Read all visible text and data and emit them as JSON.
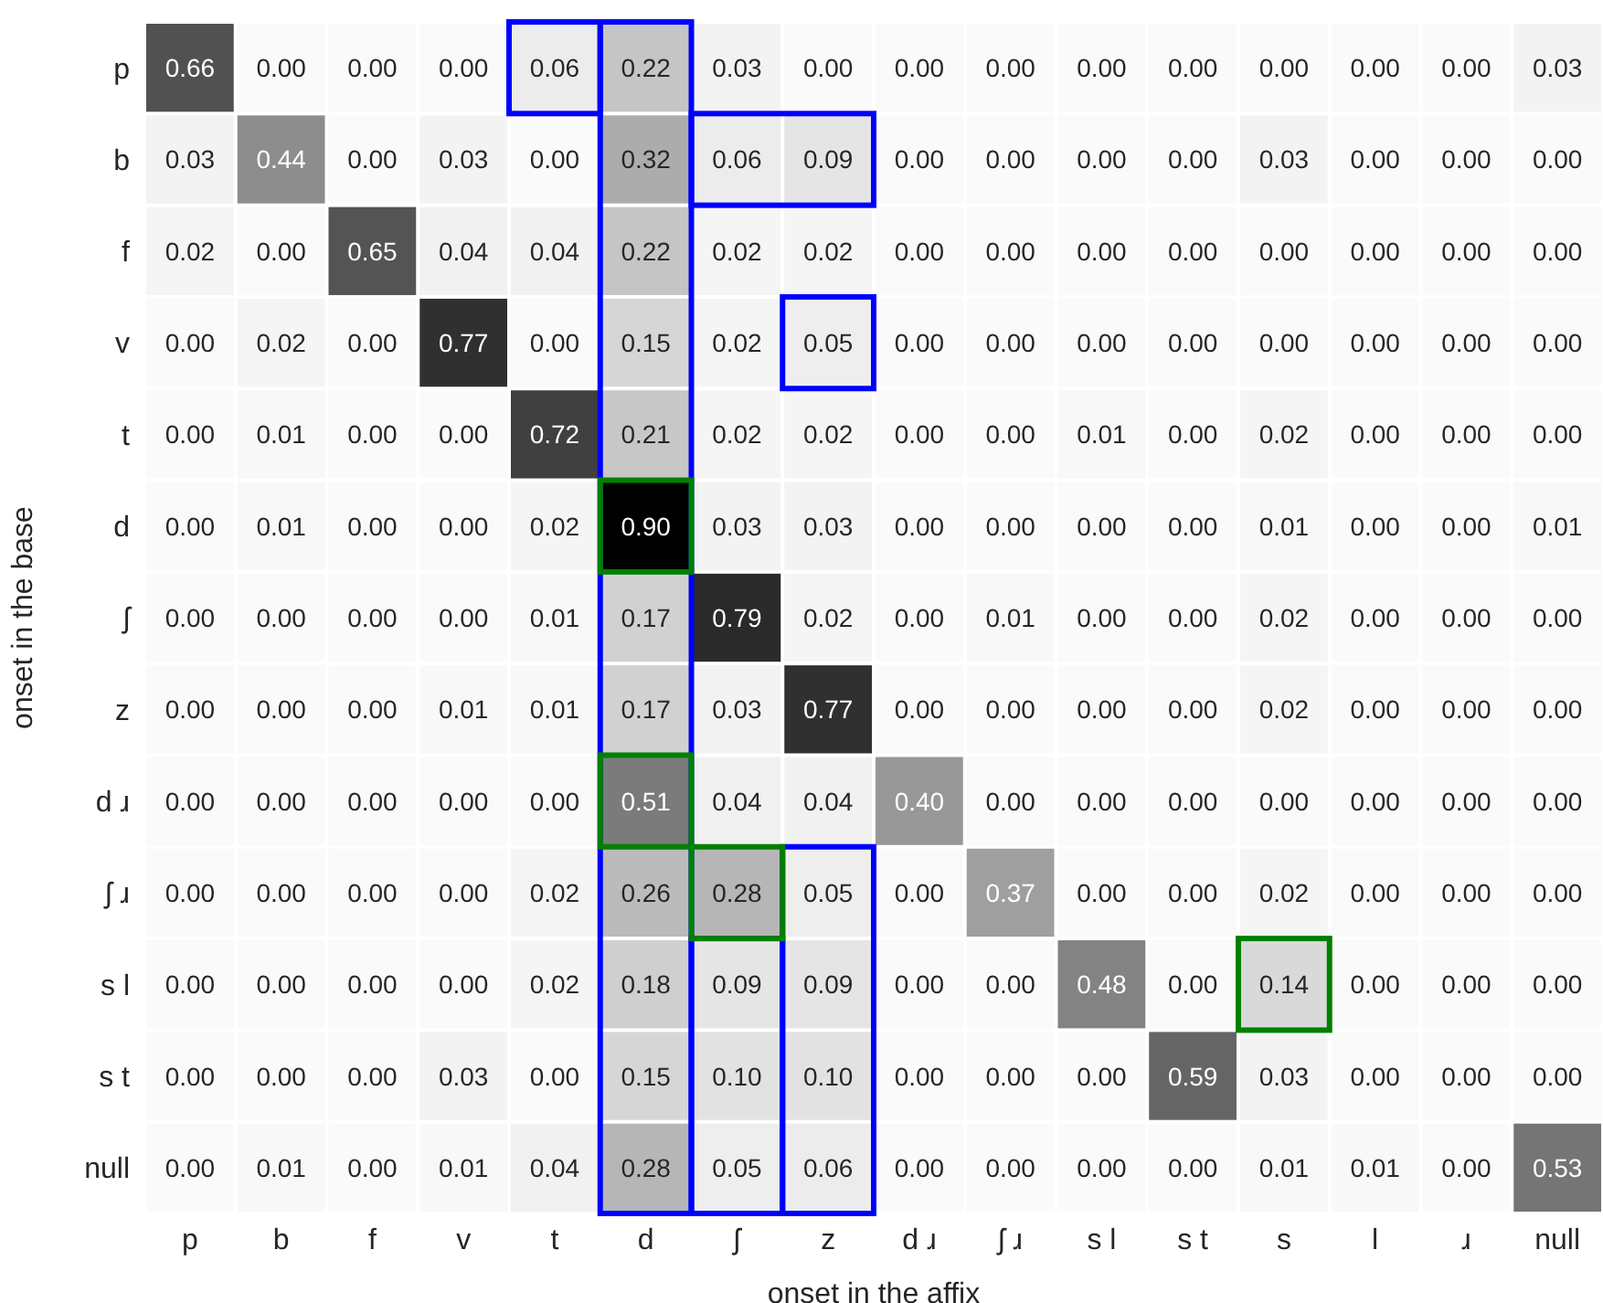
{
  "chart_data": {
    "type": "heatmap",
    "xlabel": "onset in the affix",
    "ylabel": "onset in the base",
    "grid": false,
    "legend": false,
    "cell_labels": [
      [
        "0.66",
        "0.00",
        "0.00",
        "0.00",
        "0.06",
        "0.22",
        "0.03",
        "0.00",
        "0.00",
        "0.00",
        "0.00",
        "0.00",
        "0.00",
        "0.00",
        "0.00",
        "0.03"
      ],
      [
        "0.03",
        "0.44",
        "0.00",
        "0.03",
        "0.00",
        "0.32",
        "0.06",
        "0.09",
        "0.00",
        "0.00",
        "0.00",
        "0.00",
        "0.03",
        "0.00",
        "0.00",
        "0.00"
      ],
      [
        "0.02",
        "0.00",
        "0.65",
        "0.04",
        "0.04",
        "0.22",
        "0.02",
        "0.02",
        "0.00",
        "0.00",
        "0.00",
        "0.00",
        "0.00",
        "0.00",
        "0.00",
        "0.00"
      ],
      [
        "0.00",
        "0.02",
        "0.00",
        "0.77",
        "0.00",
        "0.15",
        "0.02",
        "0.05",
        "0.00",
        "0.00",
        "0.00",
        "0.00",
        "0.00",
        "0.00",
        "0.00",
        "0.00"
      ],
      [
        "0.00",
        "0.01",
        "0.00",
        "0.00",
        "0.72",
        "0.21",
        "0.02",
        "0.02",
        "0.00",
        "0.00",
        "0.01",
        "0.00",
        "0.02",
        "0.00",
        "0.00",
        "0.00"
      ],
      [
        "0.00",
        "0.01",
        "0.00",
        "0.00",
        "0.02",
        "0.90",
        "0.03",
        "0.03",
        "0.00",
        "0.00",
        "0.00",
        "0.00",
        "0.01",
        "0.00",
        "0.00",
        "0.01"
      ],
      [
        "0.00",
        "0.00",
        "0.00",
        "0.00",
        "0.01",
        "0.17",
        "0.79",
        "0.02",
        "0.00",
        "0.01",
        "0.00",
        "0.00",
        "0.02",
        "0.00",
        "0.00",
        "0.00"
      ],
      [
        "0.00",
        "0.00",
        "0.00",
        "0.01",
        "0.01",
        "0.17",
        "0.03",
        "0.77",
        "0.00",
        "0.00",
        "0.00",
        "0.00",
        "0.02",
        "0.00",
        "0.00",
        "0.00"
      ],
      [
        "0.00",
        "0.00",
        "0.00",
        "0.00",
        "0.00",
        "0.51",
        "0.04",
        "0.04",
        "0.40",
        "0.00",
        "0.00",
        "0.00",
        "0.00",
        "0.00",
        "0.00",
        "0.00"
      ],
      [
        "0.00",
        "0.00",
        "0.00",
        "0.00",
        "0.02",
        "0.26",
        "0.28",
        "0.05",
        "0.00",
        "0.37",
        "0.00",
        "0.00",
        "0.02",
        "0.00",
        "0.00",
        "0.00"
      ],
      [
        "0.00",
        "0.00",
        "0.00",
        "0.00",
        "0.02",
        "0.18",
        "0.09",
        "0.09",
        "0.00",
        "0.00",
        "0.48",
        "0.00",
        "0.14",
        "0.00",
        "0.00",
        "0.00"
      ],
      [
        "0.00",
        "0.00",
        "0.00",
        "0.03",
        "0.00",
        "0.15",
        "0.10",
        "0.10",
        "0.00",
        "0.00",
        "0.00",
        "0.59",
        "0.03",
        "0.00",
        "0.00",
        "0.00"
      ],
      [
        "0.00",
        "0.01",
        "0.00",
        "0.01",
        "0.04",
        "0.28",
        "0.05",
        "0.06",
        "0.00",
        "0.00",
        "0.00",
        "0.00",
        "0.01",
        "0.01",
        "0.00",
        "0.53"
      ]
    ],
    "categories": [
      "p",
      "b",
      "f",
      "v",
      "t",
      "d",
      "ʃ",
      "z",
      "d ɹ",
      "ʃ ɹ",
      "s l",
      "s t",
      "s",
      "l",
      "ɹ",
      "null"
    ],
    "y_categories": [
      "p",
      "b",
      "f",
      "v",
      "t",
      "d",
      "ʃ",
      "z",
      "d ɹ",
      "ʃ ɹ",
      "s l",
      "s t",
      "null"
    ],
    "cells": [
      [
        0.66,
        0.0,
        0.0,
        0.0,
        0.06,
        0.22,
        0.03,
        0.0,
        0.0,
        0.0,
        0.0,
        0.0,
        0.0,
        0.0,
        0.0,
        0.03
      ],
      [
        0.03,
        0.44,
        0.0,
        0.03,
        0.0,
        0.32,
        0.06,
        0.09,
        0.0,
        0.0,
        0.0,
        0.0,
        0.03,
        0.0,
        0.0,
        0.0
      ],
      [
        0.02,
        0.0,
        0.65,
        0.04,
        0.04,
        0.22,
        0.02,
        0.02,
        0.0,
        0.0,
        0.0,
        0.0,
        0.0,
        0.0,
        0.0,
        0.0
      ],
      [
        0.0,
        0.02,
        0.0,
        0.77,
        0.0,
        0.15,
        0.02,
        0.05,
        0.0,
        0.0,
        0.0,
        0.0,
        0.0,
        0.0,
        0.0,
        0.0
      ],
      [
        0.0,
        0.01,
        0.0,
        0.0,
        0.72,
        0.21,
        0.02,
        0.02,
        0.0,
        0.0,
        0.01,
        0.0,
        0.02,
        0.0,
        0.0,
        0.0
      ],
      [
        0.0,
        0.01,
        0.0,
        0.0,
        0.02,
        0.9,
        0.03,
        0.03,
        0.0,
        0.0,
        0.0,
        0.0,
        0.01,
        0.0,
        0.0,
        0.01
      ],
      [
        0.0,
        0.0,
        0.0,
        0.0,
        0.01,
        0.17,
        0.79,
        0.02,
        0.0,
        0.01,
        0.0,
        0.0,
        0.02,
        0.0,
        0.0,
        0.0
      ],
      [
        0.0,
        0.0,
        0.0,
        0.01,
        0.01,
        0.17,
        0.03,
        0.77,
        0.0,
        0.0,
        0.0,
        0.0,
        0.02,
        0.0,
        0.0,
        0.0
      ],
      [
        0.0,
        0.0,
        0.0,
        0.0,
        0.0,
        0.51,
        0.04,
        0.04,
        0.4,
        0.0,
        0.0,
        0.0,
        0.0,
        0.0,
        0.0,
        0.0
      ],
      [
        0.0,
        0.0,
        0.0,
        0.0,
        0.02,
        0.26,
        0.28,
        0.05,
        0.0,
        0.37,
        0.0,
        0.0,
        0.02,
        0.0,
        0.0,
        0.0
      ],
      [
        0.0,
        0.0,
        0.0,
        0.0,
        0.02,
        0.18,
        0.09,
        0.09,
        0.0,
        0.0,
        0.48,
        0.0,
        0.14,
        0.0,
        0.0,
        0.0
      ],
      [
        0.0,
        0.0,
        0.0,
        0.03,
        0.0,
        0.15,
        0.1,
        0.1,
        0.0,
        0.0,
        0.0,
        0.59,
        0.03,
        0.0,
        0.0,
        0.0
      ],
      [
        0.0,
        0.01,
        0.0,
        0.01,
        0.04,
        0.28,
        0.05,
        0.06,
        0.0,
        0.0,
        0.0,
        0.0,
        0.01,
        0.01,
        0.0,
        0.53
      ]
    ]
  }
}
